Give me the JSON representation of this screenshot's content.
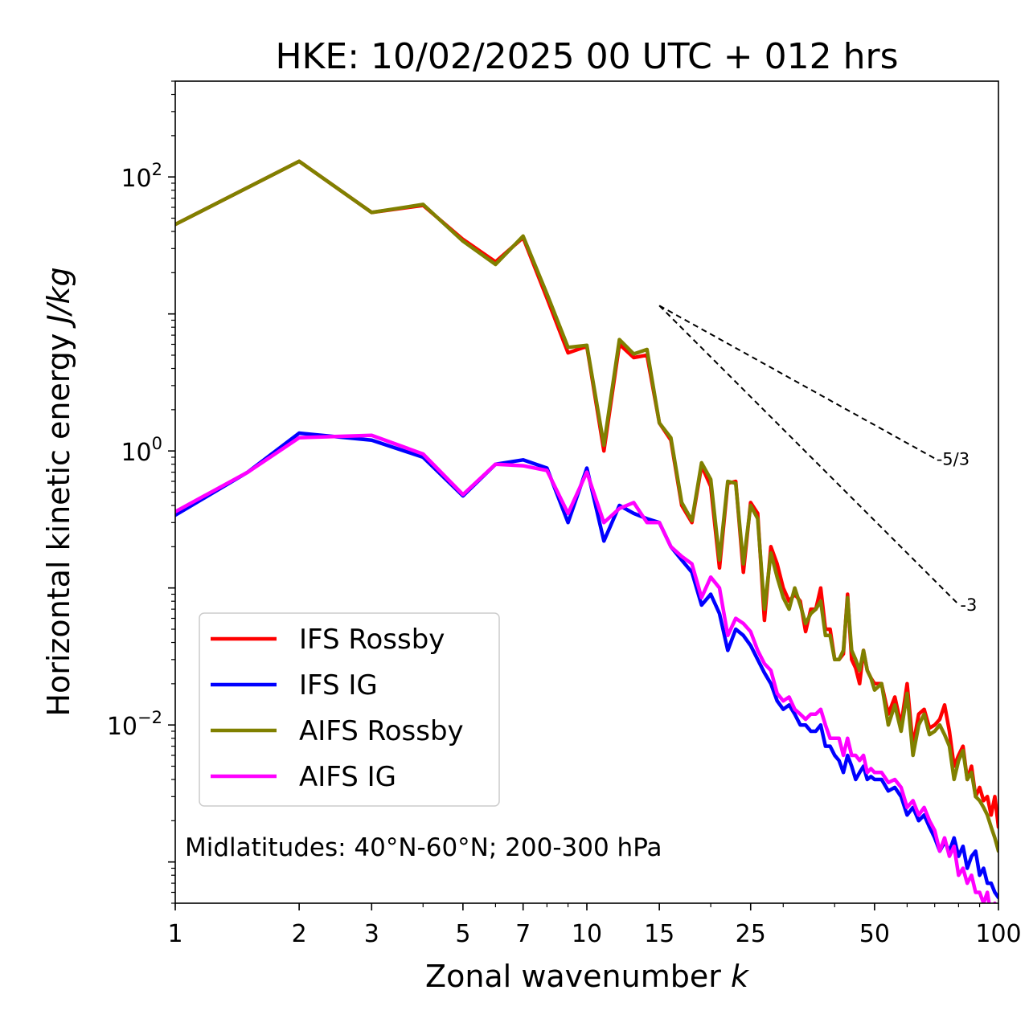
{
  "chart_data": {
    "type": "line",
    "title": "HKE: 10/02/2025 00 UTC + 012 hrs",
    "xlabel": "Zonal wavenumber",
    "xlabel_var": "k",
    "ylabel": "Horizontal kinetic energy",
    "ylabel_unit": "J/kg",
    "x_scale": "log",
    "y_scale": "log",
    "xlim": [
      1,
      100
    ],
    "ylim": [
      0.0005,
      500
    ],
    "x_ticks": [
      1,
      2,
      3,
      5,
      7,
      10,
      15,
      25,
      50,
      100
    ],
    "x_tick_labels": [
      "1",
      "2",
      "3",
      "5",
      "7",
      "10",
      "15",
      "25",
      "50",
      "100"
    ],
    "y_ticks": [
      {
        "value": 100,
        "base": "10",
        "exp": "2"
      },
      {
        "value": 1,
        "base": "10",
        "exp": "0"
      },
      {
        "value": 0.01,
        "base": "10",
        "exp": "−2"
      }
    ],
    "grid": false,
    "legend_position": "lower-left",
    "annotation": "Midlatitudes: 40°N-60°N; 200-300 hPa",
    "reference_lines": [
      {
        "label": "-5/3",
        "slope": -1.6667,
        "x_start": 15,
        "x_end": 70,
        "y_start": 11.5,
        "color": "#000000"
      },
      {
        "label": "-3",
        "slope": -3,
        "x_start": 15,
        "x_end": 80,
        "y_start": 11.5,
        "color": "#000000"
      }
    ],
    "series": [
      {
        "name": "IFS Rossby",
        "color": "#ff0000",
        "points": [
          [
            1,
            45
          ],
          [
            2,
            130
          ],
          [
            3,
            55
          ],
          [
            4,
            62
          ],
          [
            5,
            35
          ],
          [
            6,
            24
          ],
          [
            7,
            36
          ],
          [
            8,
            13
          ],
          [
            9,
            5.2
          ],
          [
            10,
            5.8
          ],
          [
            11,
            1.0
          ],
          [
            12,
            6.0
          ],
          [
            13,
            4.8
          ],
          [
            14,
            5.0
          ],
          [
            15,
            1.6
          ],
          [
            16,
            1.2
          ],
          [
            17,
            0.4
          ],
          [
            18,
            0.3
          ],
          [
            19,
            0.78
          ],
          [
            20,
            0.55
          ],
          [
            21,
            0.14
          ],
          [
            22,
            0.58
          ],
          [
            23,
            0.6
          ],
          [
            24,
            0.13
          ],
          [
            25,
            0.42
          ],
          [
            26,
            0.35
          ],
          [
            27,
            0.058
          ],
          [
            28,
            0.2
          ],
          [
            29,
            0.15
          ],
          [
            30,
            0.1
          ],
          [
            31,
            0.08
          ],
          [
            32,
            0.09
          ],
          [
            33,
            0.08
          ],
          [
            34,
            0.048
          ],
          [
            35,
            0.07
          ],
          [
            36,
            0.07
          ],
          [
            37,
            0.1
          ],
          [
            38,
            0.05
          ],
          [
            39,
            0.05
          ],
          [
            40,
            0.03
          ],
          [
            41,
            0.03
          ],
          [
            42,
            0.033
          ],
          [
            43,
            0.09
          ],
          [
            44,
            0.03
          ],
          [
            45,
            0.026
          ],
          [
            46,
            0.02
          ],
          [
            47,
            0.035
          ],
          [
            48,
            0.025
          ],
          [
            49,
            0.022
          ],
          [
            50,
            0.02
          ],
          [
            52,
            0.02
          ],
          [
            54,
            0.012
          ],
          [
            56,
            0.016
          ],
          [
            58,
            0.01
          ],
          [
            60,
            0.02
          ],
          [
            62,
            0.007
          ],
          [
            64,
            0.012
          ],
          [
            66,
            0.013
          ],
          [
            68,
            0.0095
          ],
          [
            70,
            0.01
          ],
          [
            72,
            0.011
          ],
          [
            74,
            0.014
          ],
          [
            76,
            0.009
          ],
          [
            78,
            0.005
          ],
          [
            80,
            0.006
          ],
          [
            82,
            0.007
          ],
          [
            84,
            0.004
          ],
          [
            86,
            0.005
          ],
          [
            88,
            0.003
          ],
          [
            90,
            0.0035
          ],
          [
            92,
            0.0028
          ],
          [
            94,
            0.003
          ],
          [
            96,
            0.0022
          ],
          [
            98,
            0.003
          ],
          [
            100,
            0.0018
          ]
        ]
      },
      {
        "name": "IFS IG",
        "color": "#0000ff",
        "points": [
          [
            1,
            0.34
          ],
          [
            1.5,
            0.7
          ],
          [
            2,
            1.35
          ],
          [
            3,
            1.2
          ],
          [
            4,
            0.9
          ],
          [
            5,
            0.47
          ],
          [
            6,
            0.8
          ],
          [
            7,
            0.86
          ],
          [
            8,
            0.75
          ],
          [
            9,
            0.3
          ],
          [
            10,
            0.75
          ],
          [
            11,
            0.22
          ],
          [
            12,
            0.4
          ],
          [
            13,
            0.35
          ],
          [
            14,
            0.32
          ],
          [
            15,
            0.3
          ],
          [
            16,
            0.2
          ],
          [
            17,
            0.16
          ],
          [
            18,
            0.13
          ],
          [
            19,
            0.075
          ],
          [
            20,
            0.09
          ],
          [
            21,
            0.065
          ],
          [
            22,
            0.035
          ],
          [
            23,
            0.05
          ],
          [
            24,
            0.045
          ],
          [
            25,
            0.038
          ],
          [
            26,
            0.03
          ],
          [
            27,
            0.024
          ],
          [
            28,
            0.02
          ],
          [
            29,
            0.015
          ],
          [
            30,
            0.013
          ],
          [
            31,
            0.014
          ],
          [
            32,
            0.012
          ],
          [
            33,
            0.01
          ],
          [
            34,
            0.01
          ],
          [
            35,
            0.009
          ],
          [
            36,
            0.009
          ],
          [
            37,
            0.01
          ],
          [
            38,
            0.007
          ],
          [
            39,
            0.007
          ],
          [
            40,
            0.006
          ],
          [
            41,
            0.0055
          ],
          [
            42,
            0.0045
          ],
          [
            43,
            0.006
          ],
          [
            44,
            0.005
          ],
          [
            45,
            0.004
          ],
          [
            46,
            0.0045
          ],
          [
            47,
            0.005
          ],
          [
            48,
            0.004
          ],
          [
            49,
            0.0042
          ],
          [
            50,
            0.004
          ],
          [
            52,
            0.004
          ],
          [
            54,
            0.0033
          ],
          [
            56,
            0.0035
          ],
          [
            58,
            0.003
          ],
          [
            60,
            0.0022
          ],
          [
            62,
            0.0025
          ],
          [
            64,
            0.002
          ],
          [
            66,
            0.0022
          ],
          [
            68,
            0.0018
          ],
          [
            70,
            0.0015
          ],
          [
            72,
            0.0012
          ],
          [
            74,
            0.0014
          ],
          [
            76,
            0.0012
          ],
          [
            78,
            0.0015
          ],
          [
            80,
            0.0011
          ],
          [
            82,
            0.0013
          ],
          [
            84,
            0.0009
          ],
          [
            86,
            0.0011
          ],
          [
            88,
            0.0012
          ],
          [
            90,
            0.0008
          ],
          [
            92,
            0.0009
          ],
          [
            94,
            0.0007
          ],
          [
            96,
            0.0007
          ],
          [
            98,
            0.0006
          ],
          [
            100,
            0.00055
          ]
        ]
      },
      {
        "name": "AIFS Rossby",
        "color": "#808000",
        "points": [
          [
            1,
            45
          ],
          [
            2,
            130
          ],
          [
            3,
            55
          ],
          [
            4,
            63
          ],
          [
            5,
            34
          ],
          [
            6,
            23
          ],
          [
            7,
            37
          ],
          [
            8,
            14
          ],
          [
            9,
            5.7
          ],
          [
            10,
            5.9
          ],
          [
            11,
            1.1
          ],
          [
            12,
            6.5
          ],
          [
            13,
            5.1
          ],
          [
            14,
            5.5
          ],
          [
            15,
            1.6
          ],
          [
            16,
            1.25
          ],
          [
            17,
            0.42
          ],
          [
            18,
            0.31
          ],
          [
            19,
            0.82
          ],
          [
            20,
            0.62
          ],
          [
            21,
            0.16
          ],
          [
            22,
            0.6
          ],
          [
            23,
            0.58
          ],
          [
            24,
            0.15
          ],
          [
            25,
            0.4
          ],
          [
            26,
            0.32
          ],
          [
            27,
            0.07
          ],
          [
            28,
            0.18
          ],
          [
            29,
            0.12
          ],
          [
            30,
            0.085
          ],
          [
            31,
            0.07
          ],
          [
            32,
            0.1
          ],
          [
            33,
            0.075
          ],
          [
            34,
            0.055
          ],
          [
            35,
            0.065
          ],
          [
            36,
            0.07
          ],
          [
            37,
            0.08
          ],
          [
            38,
            0.045
          ],
          [
            39,
            0.045
          ],
          [
            40,
            0.03
          ],
          [
            41,
            0.03
          ],
          [
            42,
            0.035
          ],
          [
            43,
            0.085
          ],
          [
            44,
            0.035
          ],
          [
            45,
            0.03
          ],
          [
            46,
            0.025
          ],
          [
            47,
            0.035
          ],
          [
            48,
            0.025
          ],
          [
            49,
            0.022
          ],
          [
            50,
            0.018
          ],
          [
            52,
            0.02
          ],
          [
            54,
            0.01
          ],
          [
            56,
            0.014
          ],
          [
            58,
            0.009
          ],
          [
            60,
            0.017
          ],
          [
            62,
            0.006
          ],
          [
            64,
            0.01
          ],
          [
            66,
            0.012
          ],
          [
            68,
            0.0085
          ],
          [
            70,
            0.009
          ],
          [
            72,
            0.01
          ],
          [
            74,
            0.0085
          ],
          [
            76,
            0.007
          ],
          [
            78,
            0.004
          ],
          [
            80,
            0.0055
          ],
          [
            82,
            0.0065
          ],
          [
            84,
            0.004
          ],
          [
            86,
            0.0045
          ],
          [
            88,
            0.003
          ],
          [
            90,
            0.0028
          ],
          [
            92,
            0.0025
          ],
          [
            94,
            0.0022
          ],
          [
            96,
            0.0018
          ],
          [
            98,
            0.0015
          ],
          [
            100,
            0.0012
          ]
        ]
      },
      {
        "name": "AIFS IG",
        "color": "#ff00ff",
        "points": [
          [
            1,
            0.36
          ],
          [
            1.5,
            0.7
          ],
          [
            2,
            1.25
          ],
          [
            3,
            1.3
          ],
          [
            4,
            0.95
          ],
          [
            5,
            0.48
          ],
          [
            6,
            0.8
          ],
          [
            7,
            0.78
          ],
          [
            8,
            0.72
          ],
          [
            9,
            0.35
          ],
          [
            10,
            0.7
          ],
          [
            11,
            0.3
          ],
          [
            12,
            0.38
          ],
          [
            13,
            0.42
          ],
          [
            14,
            0.3
          ],
          [
            15,
            0.3
          ],
          [
            16,
            0.2
          ],
          [
            17,
            0.17
          ],
          [
            18,
            0.15
          ],
          [
            19,
            0.085
          ],
          [
            20,
            0.12
          ],
          [
            21,
            0.1
          ],
          [
            22,
            0.045
          ],
          [
            23,
            0.06
          ],
          [
            24,
            0.055
          ],
          [
            25,
            0.048
          ],
          [
            26,
            0.035
          ],
          [
            27,
            0.028
          ],
          [
            28,
            0.025
          ],
          [
            29,
            0.017
          ],
          [
            30,
            0.015
          ],
          [
            31,
            0.016
          ],
          [
            32,
            0.013
          ],
          [
            33,
            0.012
          ],
          [
            34,
            0.011
          ],
          [
            35,
            0.012
          ],
          [
            36,
            0.012
          ],
          [
            37,
            0.013
          ],
          [
            38,
            0.01
          ],
          [
            39,
            0.008
          ],
          [
            40,
            0.008
          ],
          [
            41,
            0.008
          ],
          [
            42,
            0.006
          ],
          [
            43,
            0.008
          ],
          [
            44,
            0.006
          ],
          [
            45,
            0.006
          ],
          [
            46,
            0.0055
          ],
          [
            47,
            0.006
          ],
          [
            48,
            0.0045
          ],
          [
            49,
            0.0048
          ],
          [
            50,
            0.0045
          ],
          [
            52,
            0.0045
          ],
          [
            54,
            0.0038
          ],
          [
            56,
            0.004
          ],
          [
            58,
            0.0035
          ],
          [
            60,
            0.0025
          ],
          [
            62,
            0.0028
          ],
          [
            64,
            0.0022
          ],
          [
            66,
            0.0025
          ],
          [
            68,
            0.002
          ],
          [
            70,
            0.0017
          ],
          [
            72,
            0.0012
          ],
          [
            74,
            0.0015
          ],
          [
            76,
            0.0011
          ],
          [
            78,
            0.0013
          ],
          [
            80,
            0.0008
          ],
          [
            82,
            0.0009
          ],
          [
            84,
            0.0007
          ],
          [
            86,
            0.0008
          ],
          [
            88,
            0.0006
          ],
          [
            90,
            0.0006
          ],
          [
            92,
            0.0005
          ],
          [
            94,
            0.0006
          ],
          [
            96,
            0.0004
          ],
          [
            98,
            0.0005
          ],
          [
            100,
            0.0004
          ]
        ]
      }
    ]
  }
}
